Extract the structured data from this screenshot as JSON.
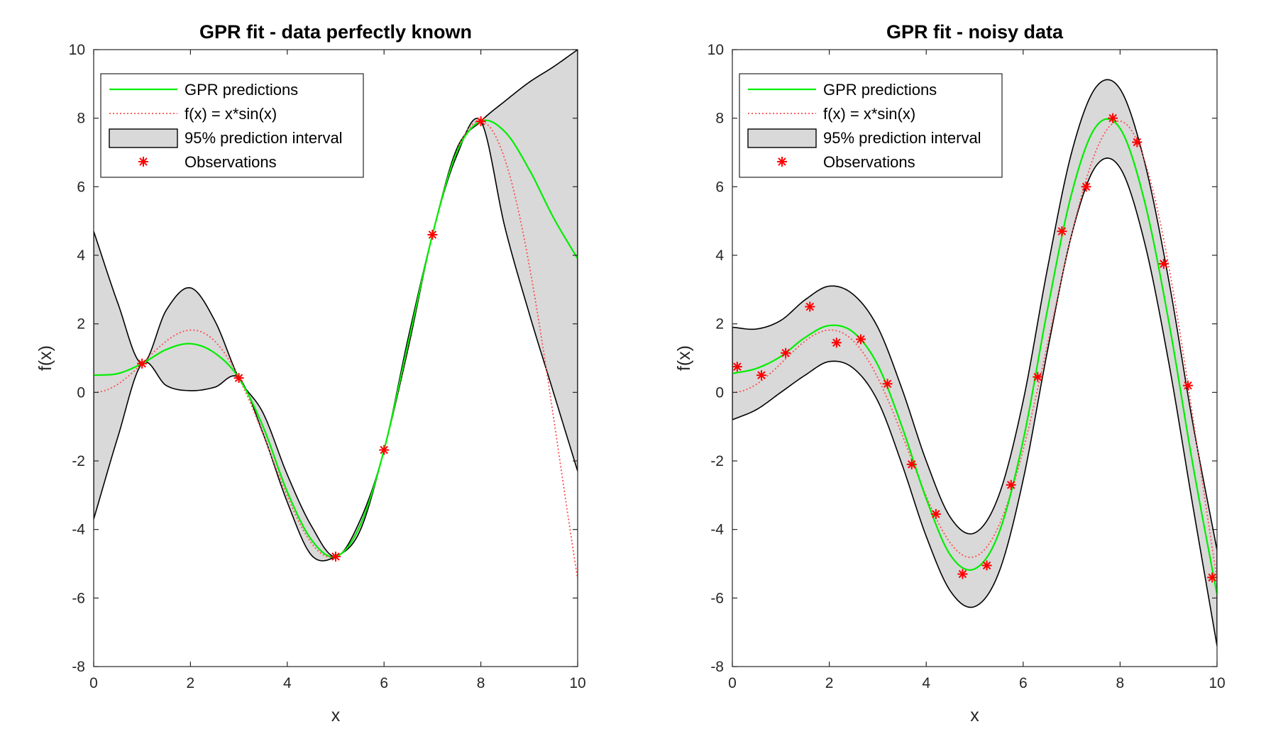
{
  "chart_data": [
    {
      "type": "line",
      "title": "GPR fit - data perfectly known",
      "xlabel": "x",
      "ylabel": "f(x)",
      "xlim": [
        0,
        10
      ],
      "ylim": [
        -8,
        10
      ],
      "xticks": [
        0,
        2,
        4,
        6,
        8,
        10
      ],
      "yticks": [
        -8,
        -6,
        -4,
        -2,
        0,
        2,
        4,
        6,
        8,
        10
      ],
      "grid": false,
      "legend_position": "top-left",
      "legend": [
        "GPR predictions",
        "f(x) = x*sin(x)",
        "95% prediction interval",
        "Observations"
      ],
      "colors": {
        "prediction": "#00ee00",
        "true_function": "#ff4d4d",
        "interval_fill": "#d9d9d9",
        "interval_edge": "#000000",
        "observations": "#ff0000"
      },
      "observations": {
        "x": [
          1,
          3,
          5,
          6,
          7,
          8
        ],
        "y": [
          0.84,
          0.42,
          -4.79,
          -1.68,
          4.6,
          7.91
        ]
      },
      "prediction": {
        "x": [
          0,
          0.5,
          1,
          1.5,
          2,
          2.5,
          3,
          3.5,
          4,
          4.5,
          5,
          5.5,
          6,
          6.5,
          7,
          7.5,
          8,
          8.5,
          9,
          9.5,
          10
        ],
        "y": [
          0.5,
          0.55,
          0.84,
          1.25,
          1.42,
          1.15,
          0.42,
          -1.0,
          -2.9,
          -4.3,
          -4.79,
          -3.9,
          -1.68,
          1.45,
          4.6,
          7.0,
          7.91,
          7.6,
          6.5,
          5.1,
          3.9
        ]
      },
      "interval": {
        "x": [
          0,
          0.5,
          1,
          1.5,
          2,
          2.5,
          3,
          3.5,
          4,
          4.5,
          5,
          5.5,
          6,
          6.5,
          7,
          7.5,
          8,
          8.5,
          9,
          9.5,
          10
        ],
        "lower": [
          -3.7,
          -1.3,
          0.84,
          0.2,
          0.05,
          0.15,
          0.42,
          -1.2,
          -3.2,
          -4.75,
          -4.79,
          -4.05,
          -1.68,
          1.3,
          4.6,
          6.9,
          7.91,
          4.8,
          2.3,
          0.0,
          -2.3
        ],
        "upper": [
          4.7,
          2.6,
          0.84,
          2.4,
          3.05,
          2.1,
          0.42,
          -0.6,
          -2.4,
          -3.9,
          -4.79,
          -3.75,
          -1.68,
          1.6,
          4.6,
          7.1,
          7.91,
          8.5,
          9.05,
          9.5,
          10.0
        ]
      },
      "true_function": {
        "expression": "x*sin(x)",
        "xmin": 0,
        "xmax": 10
      }
    },
    {
      "type": "line",
      "title": "GPR fit - noisy data",
      "xlabel": "x",
      "ylabel": "f(x)",
      "xlim": [
        0,
        10
      ],
      "ylim": [
        -8,
        10
      ],
      "xticks": [
        0,
        2,
        4,
        6,
        8,
        10
      ],
      "yticks": [
        -8,
        -6,
        -4,
        -2,
        0,
        2,
        4,
        6,
        8,
        10
      ],
      "grid": false,
      "legend_position": "top-left",
      "legend": [
        "GPR predictions",
        "f(x) = x*sin(x)",
        "95% prediction interval",
        "Observations"
      ],
      "colors": {
        "prediction": "#00ee00",
        "true_function": "#ff4d4d",
        "interval_fill": "#d9d9d9",
        "interval_edge": "#000000",
        "observations": "#ff0000"
      },
      "observations": {
        "x": [
          0.1,
          0.6,
          1.1,
          1.6,
          2.15,
          2.65,
          3.2,
          3.7,
          4.2,
          4.75,
          5.25,
          5.75,
          6.3,
          6.8,
          7.3,
          7.85,
          8.35,
          8.9,
          9.4,
          9.9
        ],
        "y": [
          0.75,
          0.5,
          1.15,
          2.5,
          1.45,
          1.55,
          0.25,
          -2.1,
          -3.55,
          -5.3,
          -5.05,
          -2.7,
          0.45,
          4.7,
          6.0,
          8.0,
          7.3,
          3.75,
          0.2,
          -5.4
        ]
      },
      "prediction": {
        "x": [
          0,
          0.5,
          1,
          1.5,
          2,
          2.5,
          3,
          3.5,
          4,
          4.5,
          5,
          5.5,
          6,
          6.5,
          7,
          7.5,
          8,
          8.5,
          9,
          9.5,
          10
        ],
        "y": [
          0.55,
          0.7,
          1.05,
          1.6,
          1.95,
          1.75,
          0.8,
          -1.0,
          -3.1,
          -4.75,
          -5.15,
          -4.1,
          -1.4,
          2.4,
          5.8,
          7.75,
          7.7,
          5.6,
          2.1,
          -2.1,
          -5.9
        ]
      },
      "interval": {
        "x": [
          0,
          0.5,
          1,
          1.5,
          2,
          2.5,
          3,
          3.5,
          4,
          4.5,
          5,
          5.5,
          6,
          6.5,
          7,
          7.5,
          8,
          8.5,
          9,
          9.5,
          10
        ],
        "lower": [
          -0.8,
          -0.5,
          0.0,
          0.5,
          0.9,
          0.7,
          -0.25,
          -2.1,
          -4.2,
          -5.8,
          -6.25,
          -5.25,
          -2.55,
          1.2,
          4.6,
          6.6,
          6.55,
          4.4,
          0.9,
          -3.3,
          -7.4
        ],
        "upper": [
          1.9,
          1.85,
          2.1,
          2.7,
          3.1,
          2.85,
          1.9,
          0.1,
          -2.0,
          -3.65,
          -4.1,
          -3.0,
          -0.25,
          3.6,
          7.0,
          8.9,
          8.85,
          6.75,
          3.3,
          -0.9,
          -4.6
        ]
      },
      "true_function": {
        "expression": "x*sin(x)",
        "xmin": 0,
        "xmax": 10
      }
    }
  ]
}
